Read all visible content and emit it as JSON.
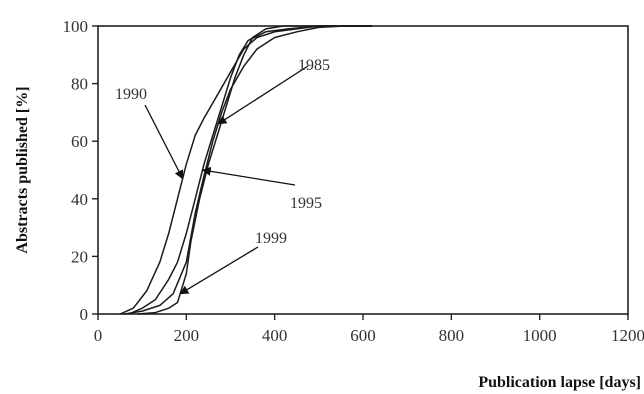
{
  "chart_data": {
    "type": "line",
    "title": "",
    "xlabel": "Publication lapse [days]",
    "ylabel": "Abstracts published [%]",
    "xlim": [
      0,
      1200
    ],
    "ylim": [
      0,
      100
    ],
    "x_ticks": [
      0,
      200,
      400,
      600,
      800,
      1000,
      1200
    ],
    "y_ticks": [
      0,
      20,
      40,
      60,
      80,
      100
    ],
    "grid": false,
    "legend": "none",
    "colors": {
      "line": "#1a1a1a",
      "axis": "#222222",
      "text": "#333333"
    },
    "series": [
      {
        "name": "1985",
        "points": [
          [
            60,
            0
          ],
          [
            100,
            1
          ],
          [
            140,
            3
          ],
          [
            170,
            7
          ],
          [
            200,
            18
          ],
          [
            220,
            35
          ],
          [
            240,
            48
          ],
          [
            260,
            60
          ],
          [
            280,
            70
          ],
          [
            300,
            78
          ],
          [
            330,
            86
          ],
          [
            360,
            92
          ],
          [
            400,
            96
          ],
          [
            450,
            98
          ],
          [
            500,
            99.5
          ],
          [
            560,
            100
          ],
          [
            620,
            100
          ]
        ]
      },
      {
        "name": "1990",
        "points": [
          [
            50,
            0
          ],
          [
            80,
            2
          ],
          [
            110,
            8
          ],
          [
            140,
            18
          ],
          [
            160,
            28
          ],
          [
            180,
            40
          ],
          [
            200,
            52
          ],
          [
            220,
            62
          ],
          [
            240,
            68
          ],
          [
            270,
            76
          ],
          [
            300,
            84
          ],
          [
            330,
            92
          ],
          [
            360,
            96
          ],
          [
            400,
            98
          ],
          [
            450,
            99
          ],
          [
            500,
            100
          ],
          [
            620,
            100
          ]
        ]
      },
      {
        "name": "1995",
        "points": [
          [
            70,
            0
          ],
          [
            100,
            2
          ],
          [
            130,
            5
          ],
          [
            160,
            12
          ],
          [
            180,
            18
          ],
          [
            200,
            28
          ],
          [
            220,
            40
          ],
          [
            240,
            52
          ],
          [
            260,
            62
          ],
          [
            280,
            72
          ],
          [
            300,
            82
          ],
          [
            320,
            90
          ],
          [
            340,
            95
          ],
          [
            380,
            98
          ],
          [
            430,
            99
          ],
          [
            500,
            100
          ],
          [
            620,
            100
          ]
        ]
      },
      {
        "name": "1999",
        "points": [
          [
            90,
            0
          ],
          [
            130,
            0.5
          ],
          [
            160,
            2
          ],
          [
            180,
            4
          ],
          [
            200,
            14
          ],
          [
            210,
            25
          ],
          [
            230,
            40
          ],
          [
            250,
            52
          ],
          [
            270,
            62
          ],
          [
            290,
            72
          ],
          [
            310,
            82
          ],
          [
            330,
            90
          ],
          [
            350,
            96
          ],
          [
            380,
            99
          ],
          [
            420,
            100
          ],
          [
            620,
            100
          ]
        ]
      }
    ],
    "annotations": [
      {
        "text": "1985",
        "series": "1985"
      },
      {
        "text": "1990",
        "series": "1990"
      },
      {
        "text": "1995",
        "series": "1995"
      },
      {
        "text": "1999",
        "series": "1999"
      }
    ]
  }
}
